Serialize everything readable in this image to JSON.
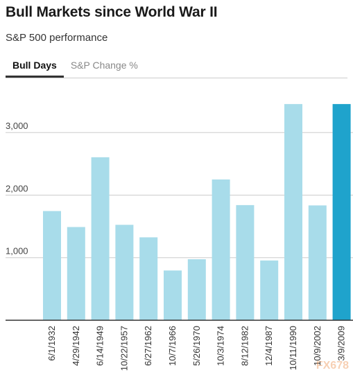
{
  "title": "Bull Markets since World War II",
  "subtitle": "S&P 500 performance",
  "tabs": [
    {
      "label": "Bull Days",
      "active": true
    },
    {
      "label": "S&P Change %",
      "active": false
    }
  ],
  "watermark": "FX678",
  "colors": {
    "bar": "#a8dcea",
    "highlight": "#1fa3cc",
    "grid": "#cccccc",
    "axis": "#333333"
  },
  "chart_data": {
    "type": "bar",
    "title": "Bull Markets since World War II",
    "subtitle": "S&P 500 performance",
    "xlabel": "",
    "ylabel": "",
    "ylim": [
      0,
      3700
    ],
    "yticks": [
      1000,
      2000,
      3000
    ],
    "ytick_labels": [
      "1,000",
      "2,000",
      "3,000"
    ],
    "grid": true,
    "categories": [
      "6/1/1932",
      "4/29/1942",
      "6/14/1949",
      "10/22/1957",
      "6/27/1962",
      "10/7/1966",
      "5/26/1970",
      "10/3/1974",
      "8/12/1982",
      "12/4/1987",
      "10/11/1990",
      "10/9/2002",
      "3/9/2009"
    ],
    "values": [
      1745,
      1490,
      2605,
      1525,
      1325,
      795,
      975,
      2250,
      1840,
      955,
      3455,
      1835,
      3455
    ],
    "highlight_index": 12
  }
}
